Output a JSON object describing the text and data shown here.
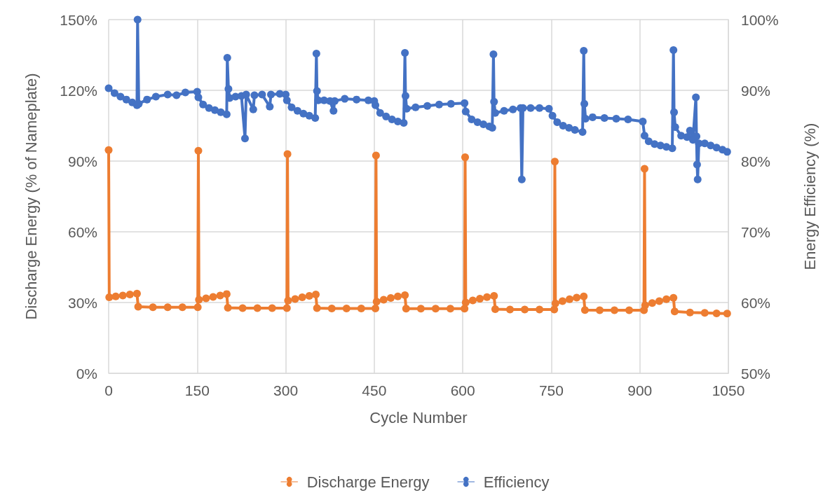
{
  "chart_data": {
    "type": "line",
    "xlabel": "Cycle Number",
    "ylabel": "Discharge Energy (% of Nameplate)",
    "y2label": "Energy Efficiency (%)",
    "xlim": [
      0,
      1050
    ],
    "xticks": [
      0,
      150,
      300,
      450,
      600,
      750,
      900,
      1050
    ],
    "ylim": [
      0,
      150
    ],
    "yticks": [
      {
        "value": 0,
        "label": "0%"
      },
      {
        "value": 30,
        "label": "30%"
      },
      {
        "value": 60,
        "label": "60%"
      },
      {
        "value": 90,
        "label": "90%"
      },
      {
        "value": 120,
        "label": "120%"
      },
      {
        "value": 150,
        "label": "150%"
      }
    ],
    "y2lim": [
      50,
      100
    ],
    "y2ticks": [
      {
        "value": 50,
        "label": "50%"
      },
      {
        "value": 60,
        "label": "60%"
      },
      {
        "value": 70,
        "label": "70%"
      },
      {
        "value": 80,
        "label": "80%"
      },
      {
        "value": 90,
        "label": "90%"
      },
      {
        "value": 100,
        "label": "100%"
      }
    ],
    "grid": true,
    "legend": "bottom",
    "marker": "circle",
    "line_style": "solid",
    "series": [
      {
        "name": "Discharge Energy",
        "color": "#ed7d31",
        "x": [
          0,
          1,
          12,
          24,
          36,
          48,
          50,
          75,
          100,
          125,
          151,
          152,
          153,
          165,
          177,
          189,
          200,
          202,
          227,
          252,
          277,
          302,
          303,
          304,
          316,
          328,
          340,
          351,
          353,
          378,
          403,
          428,
          452,
          453,
          454,
          466,
          478,
          490,
          502,
          504,
          529,
          554,
          579,
          603,
          604,
          605,
          617,
          629,
          641,
          653,
          655,
          680,
          705,
          730,
          755,
          756,
          757,
          769,
          781,
          793,
          805,
          807,
          832,
          857,
          882,
          907,
          908,
          909,
          921,
          933,
          945,
          957,
          959,
          985,
          1010,
          1030,
          1048
        ],
        "values": [
          94.7,
          32.2,
          32.6,
          33.0,
          33.4,
          33.8,
          28.2,
          28.0,
          28.0,
          28.0,
          28.0,
          94.4,
          31.2,
          31.8,
          32.4,
          33.0,
          33.6,
          27.8,
          27.6,
          27.6,
          27.6,
          27.6,
          93.0,
          30.8,
          31.5,
          32.2,
          32.8,
          33.4,
          27.6,
          27.5,
          27.5,
          27.5,
          27.5,
          92.4,
          30.4,
          31.2,
          31.9,
          32.6,
          33.1,
          27.4,
          27.4,
          27.4,
          27.4,
          27.4,
          91.6,
          30.0,
          30.9,
          31.6,
          32.3,
          32.8,
          27.2,
          27.0,
          27.0,
          27.0,
          27.0,
          89.8,
          29.6,
          30.6,
          31.4,
          32.1,
          32.6,
          26.8,
          26.7,
          26.7,
          26.7,
          26.7,
          86.7,
          28.8,
          29.8,
          30.6,
          31.4,
          32.0,
          26.2,
          25.8,
          25.6,
          25.4,
          25.3
        ]
      },
      {
        "name": "Efficiency",
        "color": "#4472c4",
        "axis": "y2",
        "x": [
          0,
          10,
          20,
          30,
          40,
          48,
          49,
          51,
          65,
          80,
          100,
          115,
          130,
          150,
          152,
          160,
          170,
          180,
          190,
          200,
          201,
          203,
          205,
          215,
          225,
          231,
          233,
          245,
          247,
          260,
          273,
          275,
          290,
          300,
          302,
          310,
          320,
          330,
          340,
          350,
          352,
          353,
          355,
          365,
          375,
          381,
          383,
          400,
          420,
          440,
          450,
          452,
          460,
          470,
          480,
          490,
          500,
          502,
          503,
          505,
          520,
          540,
          560,
          580,
          603,
          605,
          615,
          625,
          635,
          645,
          650,
          652,
          653,
          655,
          670,
          685,
          698,
          700,
          702,
          715,
          730,
          746,
          752,
          760,
          770,
          780,
          790,
          803,
          805,
          806,
          808,
          820,
          840,
          860,
          880,
          905,
          908,
          915,
          925,
          935,
          945,
          955,
          957,
          958,
          960,
          970,
          980,
          985,
          990,
          995,
          996,
          997,
          998,
          1000,
          1010,
          1020,
          1030,
          1040,
          1048
        ],
        "values": [
          90.3,
          89.6,
          89.1,
          88.7,
          88.3,
          87.9,
          100,
          88.1,
          88.7,
          89.1,
          89.4,
          89.3,
          89.7,
          89.8,
          89.0,
          88.0,
          87.5,
          87.2,
          86.9,
          86.6,
          94.6,
          90.2,
          88.9,
          89.1,
          89.2,
          83.2,
          89.4,
          87.3,
          89.3,
          89.4,
          87.7,
          89.4,
          89.5,
          89.4,
          88.6,
          87.6,
          87.1,
          86.7,
          86.4,
          86.1,
          95.2,
          89.9,
          88.6,
          88.6,
          88.5,
          87.1,
          88.5,
          88.8,
          88.7,
          88.6,
          88.5,
          87.9,
          86.8,
          86.3,
          85.9,
          85.6,
          85.4,
          95.3,
          89.2,
          87.4,
          87.6,
          87.8,
          88.0,
          88.1,
          88.2,
          87.0,
          85.9,
          85.5,
          85.2,
          84.9,
          84.7,
          95.1,
          88.4,
          86.8,
          87.1,
          87.3,
          87.5,
          77.4,
          87.5,
          87.5,
          87.5,
          87.4,
          86.4,
          85.5,
          85.0,
          84.7,
          84.4,
          84.1,
          95.6,
          88.1,
          86.0,
          86.2,
          86.1,
          86.0,
          85.9,
          85.6,
          83.6,
          82.8,
          82.4,
          82.2,
          82.0,
          81.8,
          95.7,
          86.9,
          84.8,
          83.6,
          83.4,
          84.3,
          83.0,
          89.0,
          83.5,
          79.5,
          77.4,
          82.5,
          82.5,
          82.2,
          81.9,
          81.6,
          81.3
        ]
      }
    ]
  }
}
